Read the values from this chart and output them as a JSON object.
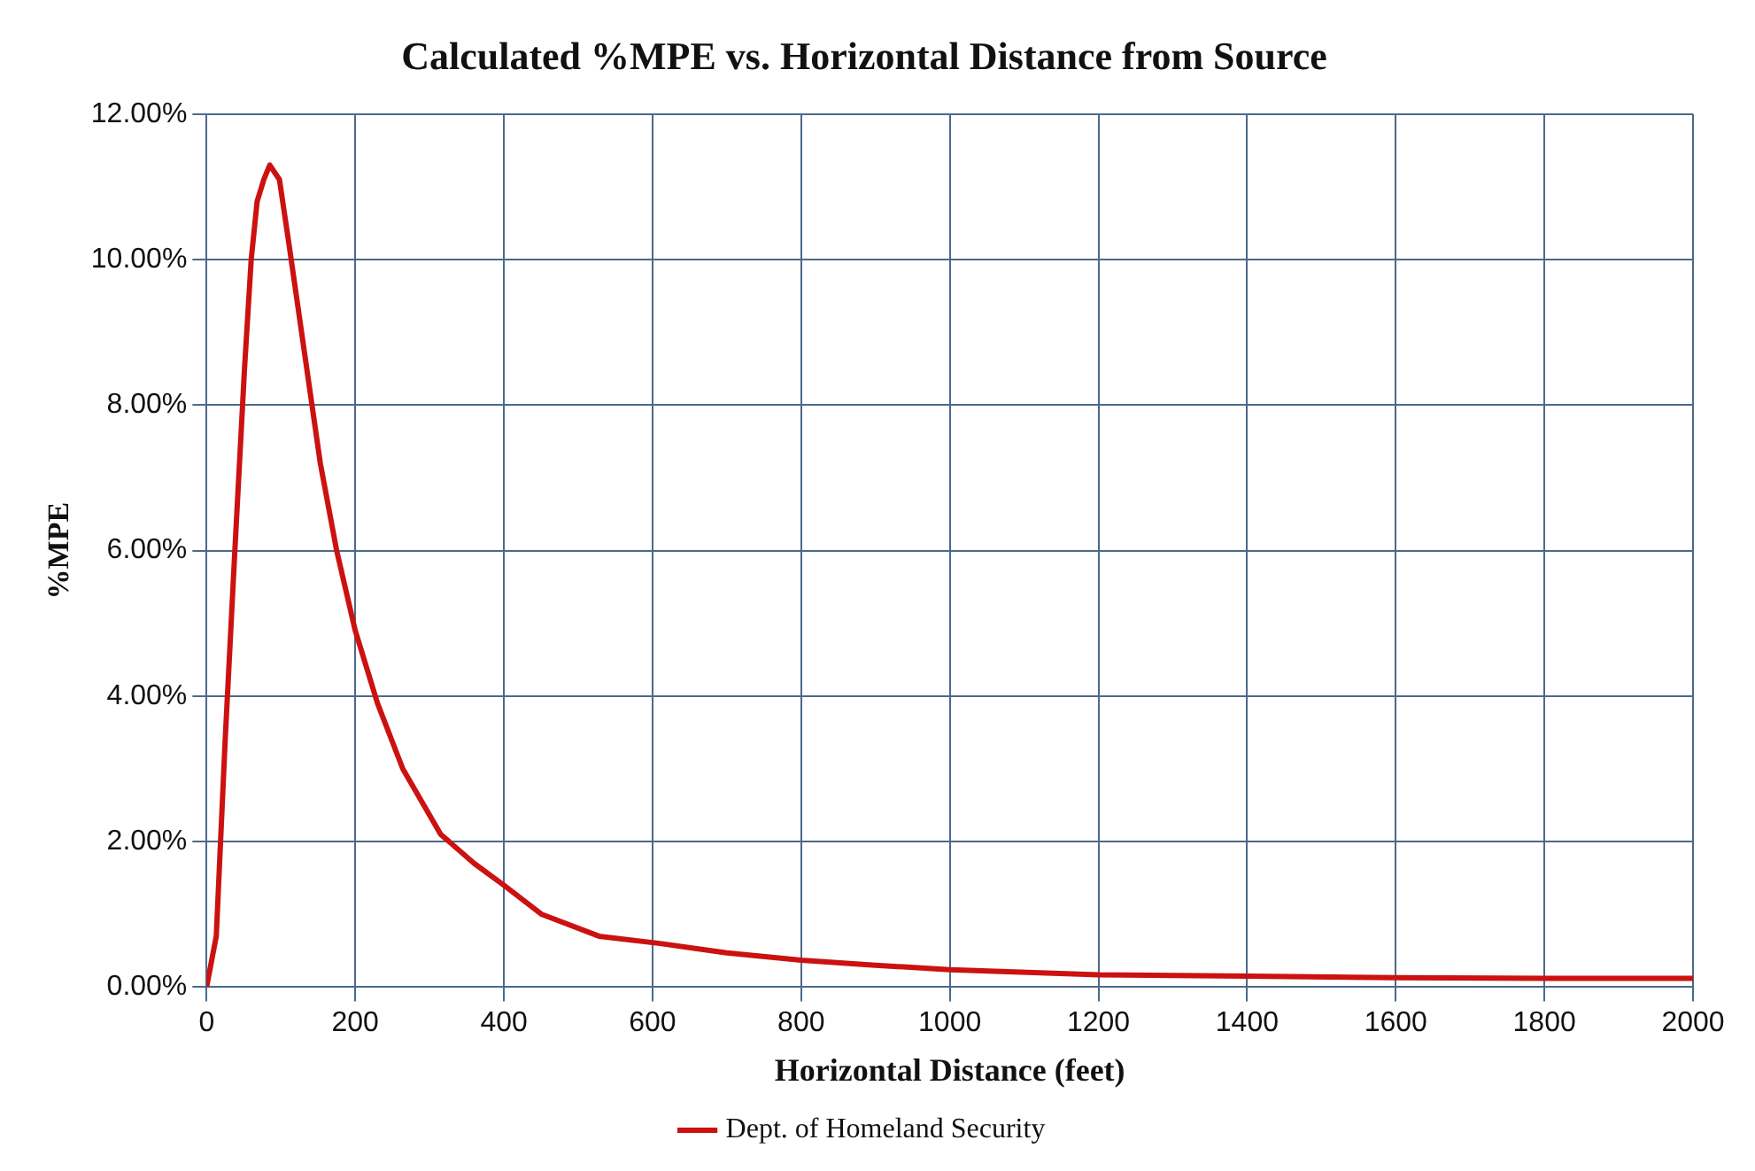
{
  "chart_data": {
    "type": "line",
    "title": "Calculated %MPE vs. Horizontal Distance from Source",
    "xlabel": "Horizontal Distance (feet)",
    "ylabel": "%MPE",
    "series": [
      {
        "name": "Dept. of Homeland Security",
        "color": "#cc1111",
        "x": [
          0,
          13,
          25,
          38,
          51,
          60,
          68,
          77,
          85,
          98,
          111,
          132,
          153,
          175,
          200,
          230,
          264,
          315,
          360,
          400,
          451,
          528,
          610,
          700,
          800,
          900,
          1000,
          1200,
          1400,
          1600,
          1800,
          2000
        ],
        "values": [
          0,
          0.7,
          3.4,
          6.0,
          8.5,
          10.0,
          10.8,
          11.1,
          11.3,
          11.1,
          10.2,
          8.7,
          7.2,
          6.0,
          4.9,
          3.9,
          3.0,
          2.1,
          1.7,
          1.4,
          1.0,
          0.7,
          0.6,
          0.47,
          0.37,
          0.3,
          0.24,
          0.17,
          0.15,
          0.13,
          0.12,
          0.12
        ]
      }
    ],
    "xlim": [
      0,
      2000
    ],
    "xticks": [
      0,
      200,
      400,
      600,
      800,
      1000,
      1200,
      1400,
      1600,
      1800,
      2000
    ],
    "ylim": [
      0,
      12
    ],
    "yticks": [
      {
        "value": 0,
        "label": "0.00%"
      },
      {
        "value": 2,
        "label": "2.00%"
      },
      {
        "value": 4,
        "label": "4.00%"
      },
      {
        "value": 6,
        "label": "6.00%"
      },
      {
        "value": 8,
        "label": "8.00%"
      },
      {
        "value": 10,
        "label": "10.00%"
      },
      {
        "value": 12,
        "label": "12.00%"
      }
    ],
    "grid": true,
    "legend": "bottom",
    "marker": "none",
    "line_style": "solid"
  }
}
